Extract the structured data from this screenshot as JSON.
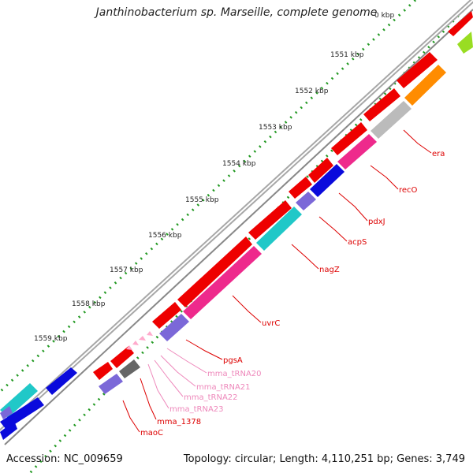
{
  "title": "Janthinobacterium sp. Marseille, complete genome",
  "footer": {
    "accession": "Accession: NC_009659",
    "summary": "Topology: circular; Length: 4,110,251 bp; Genes: 3,749"
  },
  "ticks": [
    "1551 kbp",
    "1552 kbp",
    "1553 kbp",
    "1554 kbp",
    "1555 kbp",
    "1556 kbp",
    "1557 kbp",
    "1558 kbp",
    "1559 kbp"
  ],
  "gene_labels": [
    {
      "text": "era",
      "color": "#dd0000"
    },
    {
      "text": "recO",
      "color": "#dd0000"
    },
    {
      "text": "pdxJ",
      "color": "#dd0000"
    },
    {
      "text": "acpS",
      "color": "#dd0000"
    },
    {
      "text": "nagZ",
      "color": "#dd0000"
    },
    {
      "text": "uvrC",
      "color": "#dd0000"
    },
    {
      "text": "pgsA",
      "color": "#dd0000"
    },
    {
      "text": "mma_tRNA20",
      "color": "#ee88bb"
    },
    {
      "text": "mma_tRNA21",
      "color": "#ee88bb"
    },
    {
      "text": "mma_tRNA22",
      "color": "#ee88bb"
    },
    {
      "text": "mma_tRNA23",
      "color": "#ee88bb"
    },
    {
      "text": "mma_1378",
      "color": "#dd0000"
    },
    {
      "text": "maoC",
      "color": "#dd0000"
    }
  ],
  "colors": {
    "cds": "#ee0000",
    "pink": "#ee2a8c",
    "cyan": "#20c8c8",
    "blue": "#0a0adc",
    "purple": "#7b68d8",
    "grey": "#bbbbbb",
    "orange": "#ff8c00",
    "lime": "#99dd22",
    "darkgrey": "#666666",
    "trna": "#ffaacc",
    "backbone": "#999999",
    "tick": "#229922"
  }
}
